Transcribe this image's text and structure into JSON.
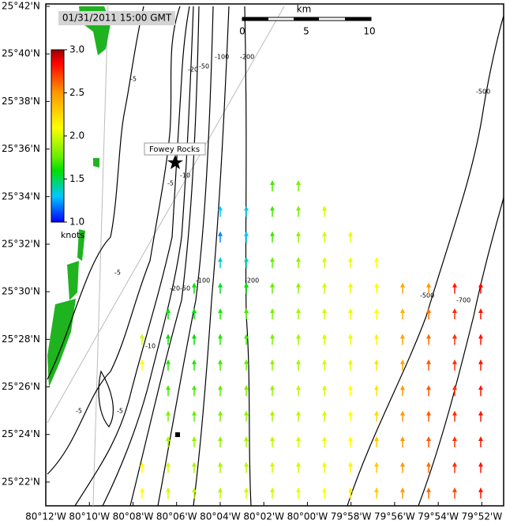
{
  "map": {
    "timestamp": "01/31/2011 15:00 GMT",
    "place": "Fowey Rocks",
    "xlim": [
      -80.2,
      -79.85
    ],
    "ylim": [
      25.35,
      25.7
    ],
    "xticks": [
      {
        "value": -80.2,
        "label": "80°12'W"
      },
      {
        "value": -80.16667,
        "label": "80°10'W"
      },
      {
        "value": -80.13333,
        "label": "80°08'W"
      },
      {
        "value": -80.1,
        "label": "80°06'W"
      },
      {
        "value": -80.06667,
        "label": "80°04'W"
      },
      {
        "value": -80.03333,
        "label": "80°02'W"
      },
      {
        "value": -80.0,
        "label": "80°00'W"
      },
      {
        "value": -79.96667,
        "label": "79°58'W"
      },
      {
        "value": -79.93333,
        "label": "79°56'W"
      },
      {
        "value": -79.9,
        "label": "79°54'W"
      },
      {
        "value": -79.86667,
        "label": "79°52'W"
      }
    ],
    "yticks": [
      {
        "value": 25.7,
        "label": "25°42'N"
      },
      {
        "value": 25.66667,
        "label": "25°40'N"
      },
      {
        "value": 25.63333,
        "label": "25°38'N"
      },
      {
        "value": 25.6,
        "label": "25°36'N"
      },
      {
        "value": 25.56667,
        "label": "25°34'N"
      },
      {
        "value": 25.53333,
        "label": "25°32'N"
      },
      {
        "value": 25.5,
        "label": "25°30'N"
      },
      {
        "value": 25.46667,
        "label": "25°28'N"
      },
      {
        "value": 25.43333,
        "label": "25°26'N"
      },
      {
        "value": 25.4,
        "label": "25°24'N"
      },
      {
        "value": 25.36667,
        "label": "25°22'N"
      }
    ],
    "colorbar": {
      "unit": "knots",
      "clim": [
        1.0,
        3.0
      ],
      "ticks": [
        {
          "value": 3.0,
          "label": "3.0"
        },
        {
          "value": 2.5,
          "label": "2.5"
        },
        {
          "value": 2.0,
          "label": "2.0"
        },
        {
          "value": 1.5,
          "label": "1.5"
        },
        {
          "value": 1.0,
          "label": "1.0"
        }
      ]
    },
    "scale_bar": {
      "unit": "km",
      "labels": [
        "0",
        "5",
        "10"
      ]
    },
    "contour_labels": [
      "-5",
      "-20",
      "-50",
      "-100",
      "-200",
      "-10",
      "-5",
      "-500",
      "-500",
      "-700",
      "-20",
      "-50",
      "-100",
      "-200",
      "-10",
      "-5",
      "-5",
      "-5"
    ],
    "speeds": [
      [
        null,
        null,
        null,
        null,
        null,
        1.7,
        1.8,
        null,
        null,
        null,
        null,
        null,
        null,
        null
      ],
      [
        null,
        null,
        null,
        1.3,
        1.35,
        1.7,
        1.8,
        2.0,
        null,
        null,
        null,
        null,
        null,
        null
      ],
      [
        null,
        null,
        null,
        1.2,
        1.3,
        1.7,
        1.85,
        2.0,
        2.05,
        null,
        null,
        null,
        null,
        null
      ],
      [
        null,
        null,
        null,
        1.35,
        1.4,
        1.75,
        1.85,
        2.0,
        2.05,
        2.1,
        null,
        null,
        null,
        null
      ],
      [
        null,
        null,
        1.6,
        1.55,
        1.6,
        1.75,
        1.85,
        2.0,
        2.05,
        2.1,
        2.45,
        2.5,
        2.8,
        2.85
      ],
      [
        null,
        1.6,
        1.6,
        1.65,
        1.7,
        1.8,
        1.9,
        2.0,
        2.05,
        2.1,
        2.4,
        2.6,
        2.75,
        2.8
      ],
      [
        2.0,
        1.6,
        1.6,
        1.65,
        1.7,
        1.8,
        1.9,
        2.0,
        2.05,
        2.15,
        2.45,
        2.6,
        2.75,
        2.8
      ],
      [
        2.1,
        1.65,
        1.65,
        1.7,
        1.75,
        1.85,
        1.9,
        2.0,
        2.05,
        2.2,
        2.45,
        2.65,
        2.75,
        2.8
      ],
      [
        null,
        1.7,
        1.7,
        1.75,
        1.8,
        1.85,
        1.95,
        2.0,
        2.1,
        2.2,
        2.5,
        2.65,
        2.75,
        2.8
      ],
      [
        null,
        1.8,
        1.75,
        1.8,
        1.85,
        1.9,
        1.95,
        2.0,
        2.1,
        2.25,
        2.5,
        2.65,
        2.75,
        2.8
      ],
      [
        null,
        1.9,
        1.85,
        1.85,
        1.9,
        1.95,
        2.0,
        2.05,
        2.1,
        2.3,
        2.5,
        2.65,
        2.75,
        2.8
      ],
      [
        2.1,
        2.0,
        1.9,
        1.9,
        1.95,
        2.0,
        2.0,
        2.05,
        2.15,
        2.3,
        2.5,
        2.6,
        2.75,
        2.8
      ],
      [
        2.1,
        2.0,
        1.95,
        1.95,
        2.0,
        2.0,
        2.05,
        2.1,
        2.15,
        2.3,
        2.5,
        2.6,
        2.7,
        2.8
      ]
    ]
  }
}
